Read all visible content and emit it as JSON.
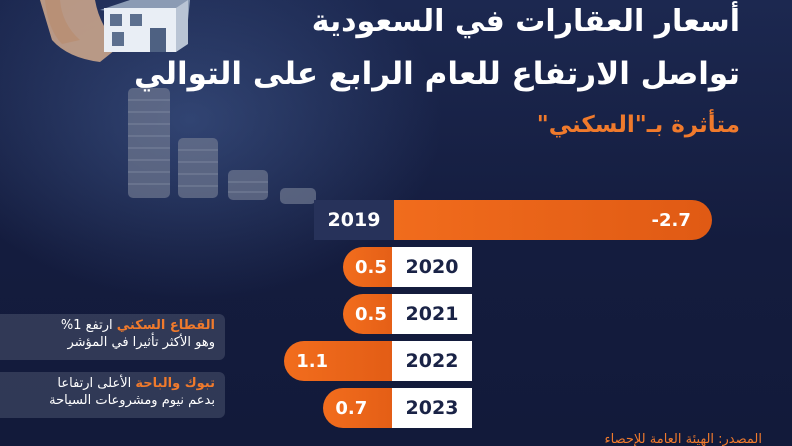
{
  "header": {
    "title": "أسعار العقارات في السعودية",
    "subtitle": "تواصل الارتفاع للعام الرابع على التوالي",
    "tagline": "متأثرة بـ\"السكني\""
  },
  "notes": [
    {
      "highlight": "القطاع السكني",
      "text1": " ارتفع  1%",
      "text2": "وهو الأكثر تأثيرا في المؤشر"
    },
    {
      "highlight": "تبوك والباحة",
      "text1": " الأعلى ارتفاعا",
      "text2": "بدعم نيوم ومشروعات السياحة"
    }
  ],
  "source": "المصدر: الهيئة العامة للإحصاء",
  "colors": {
    "bar": "#f26d1d",
    "accent": "#f07a2c",
    "background": "#141c3e"
  },
  "chart_data": {
    "type": "bar",
    "orientation": "horizontal",
    "categories": [
      "2019",
      "2020",
      "2021",
      "2022",
      "2023"
    ],
    "values": [
      -2.7,
      0.5,
      0.5,
      1.1,
      0.7
    ],
    "value_labels": [
      "-2.7",
      "0.5",
      "0.5",
      "1.1",
      "0.7"
    ],
    "title": "",
    "xlabel": "",
    "ylabel": ""
  }
}
